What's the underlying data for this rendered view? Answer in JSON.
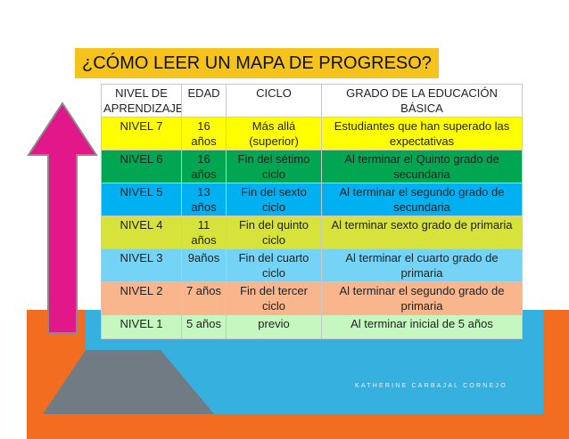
{
  "title": "¿CÓMO LEER UN MAPA DE PROGRESO?",
  "colors": {
    "title_bg": "#f6c31c",
    "arrow": "#e2178a",
    "bg_orange": "#f36d21",
    "bg_blue": "#36b1df",
    "bg_gray": "#707b84"
  },
  "table": {
    "headers": {
      "nivel": "NIVEL DE APRENDIZAJE",
      "edad": "EDAD",
      "ciclo": "CICLO",
      "grado": "GRADO DE LA EDUCACIÓN BÁSICA"
    },
    "rows": [
      {
        "nivel": "NIVEL 7",
        "edad": "16 años",
        "ciclo": "Más allá (superior)",
        "grado": "Estudiantes que han superado las expectativas",
        "color": "#ffff00"
      },
      {
        "nivel": "NIVEL 6",
        "edad": "16 años",
        "ciclo": "Fin del sétimo ciclo",
        "grado": "Al terminar el Quinto grado de secundaria",
        "color": "#00a651"
      },
      {
        "nivel": "NIVEL 5",
        "edad": "13 años",
        "ciclo": "Fin del sexto ciclo",
        "grado": "Al terminar el segundo grado de secundaria",
        "color": "#00b0f0"
      },
      {
        "nivel": "NIVEL 4",
        "edad": "11 años",
        "ciclo": "Fin del quinto ciclo",
        "grado": "Al terminar sexto grado de primaria",
        "color": "#d7e33b"
      },
      {
        "nivel": "NIVEL 3",
        "edad": "9años",
        "ciclo": "Fin del cuarto ciclo",
        "grado": "Al terminar el cuarto grado de primaria",
        "color": "#75d4f6"
      },
      {
        "nivel": "NIVEL 2",
        "edad": "7 años",
        "ciclo": "Fin del tercer ciclo",
        "grado": "Al terminar el segundo grado de primaria",
        "color": "#f9b58c"
      },
      {
        "nivel": "NIVEL 1",
        "edad": "5 años",
        "ciclo": "previo",
        "grado": "Al terminar inicial de 5 años",
        "color": "#c6f7c0"
      }
    ]
  },
  "footer": "KATHERINE CARBAJAL CORNEJO"
}
